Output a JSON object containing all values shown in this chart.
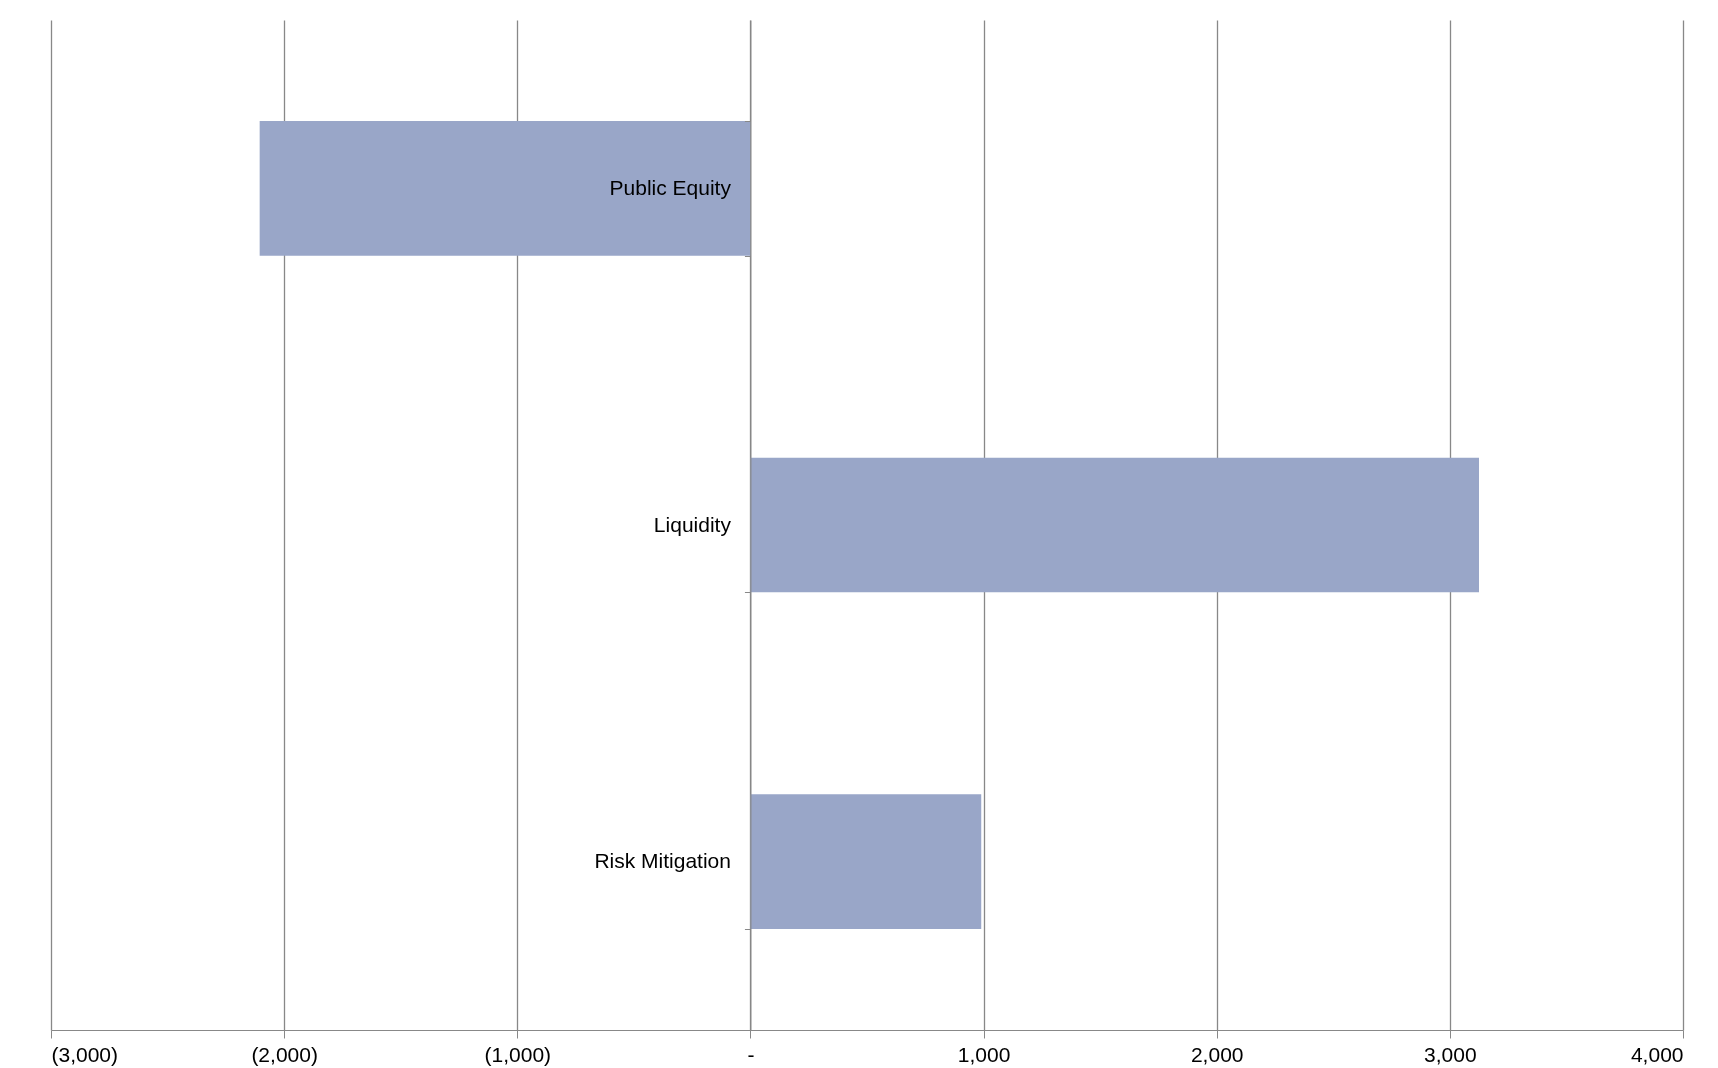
{
  "chart_data": {
    "type": "bar",
    "orientation": "horizontal",
    "categories": [
      "Public Equity",
      "Liquidity",
      "Risk Mitigation"
    ],
    "values": [
      -2105,
      3125,
      990
    ],
    "color": "#99a6c8",
    "xlim": [
      -3000,
      4000
    ],
    "xticks": [
      {
        "value": -3000,
        "label": "(3,000)"
      },
      {
        "value": -2000,
        "label": "(2,000)"
      },
      {
        "value": -1000,
        "label": "(1,000)"
      },
      {
        "value": 0,
        "label": "-"
      },
      {
        "value": 1000,
        "label": "1,000"
      },
      {
        "value": 2000,
        "label": "2,000"
      },
      {
        "value": 3000,
        "label": "3,000"
      },
      {
        "value": 4000,
        "label": "4,000"
      }
    ],
    "grid": "x"
  }
}
